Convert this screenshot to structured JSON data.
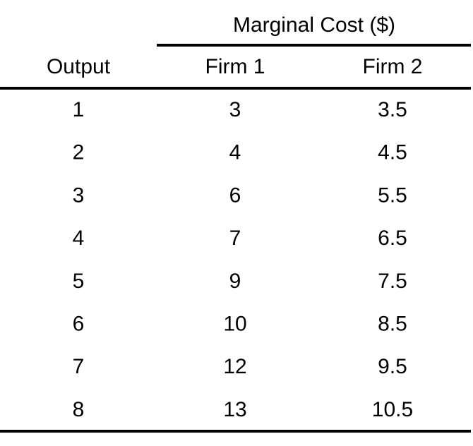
{
  "table": {
    "group_header": "Marginal Cost ($)",
    "columns": [
      "Output",
      "Firm 1",
      "Firm 2"
    ],
    "rows": [
      [
        1,
        3,
        3.5
      ],
      [
        2,
        4,
        4.5
      ],
      [
        3,
        6,
        5.5
      ],
      [
        4,
        7,
        6.5
      ],
      [
        5,
        9,
        7.5
      ],
      [
        6,
        10,
        8.5
      ],
      [
        7,
        12,
        9.5
      ],
      [
        8,
        13,
        10.5
      ]
    ]
  }
}
